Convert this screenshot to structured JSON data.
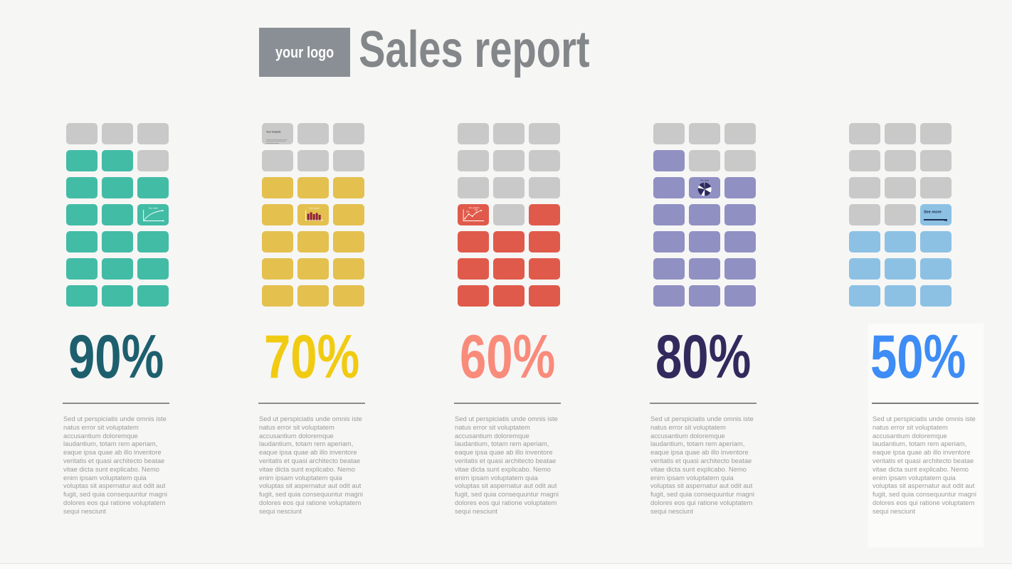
{
  "header": {
    "logo_text": "your logo",
    "title": "Sales report"
  },
  "colors": {
    "background": "#f6f6f5",
    "tile_gray": "#c9c9c9",
    "logo_bg": "#898f94",
    "title_gray": "#84878a",
    "rule": "#8d8d8d",
    "body_text": "#9b9b9b"
  },
  "shared": {
    "description": "Sed ut perspiciatis unde omnis iste natus error sit voluptatem accusantium doloremque laudantium, totam rem aperiam, eaque ipsa quae ab illo inventore veritatis et quasi architecto beatae vitae dicta sunt explicabo. Nemo enim ipsam voluptatem quia voluptas sit aspernatur aut odit aut fugit, sed quia consequuntur magni dolores eos qui ratione voluptatem sequi nesciunt"
  },
  "chart_data": {
    "type": "bar",
    "variant": "waffle-grid infographic, 5 stat columns of 7x3 rounded tiles",
    "title": "Sales report",
    "categories": [
      "column-1-teal",
      "column-2-yellow",
      "column-3-red",
      "column-4-purple",
      "column-5-blue"
    ],
    "values": [
      90,
      70,
      60,
      80,
      50
    ],
    "unit": "%",
    "waffle": {
      "rows": 7,
      "cols": 3,
      "total_tiles": 21,
      "filled_tiles": [
        17,
        15,
        11,
        16,
        10
      ]
    }
  },
  "columns": [
    {
      "percent": "90%",
      "percent_color": "#1e5f6e",
      "tile_color": "#43bca6",
      "chart": {
        "kind": "line-curve",
        "label": "Your sales"
      },
      "grid": [
        "gray",
        "gray",
        "gray",
        "fill",
        "fill",
        "gray",
        "fill",
        "fill",
        "fill",
        "fill",
        "fill",
        "chart",
        "fill",
        "fill",
        "fill",
        "fill",
        "fill",
        "fill",
        "fill",
        "fill",
        "fill"
      ]
    },
    {
      "percent": "70%",
      "percent_color": "#f1cb12",
      "tile_color": "#e4c04e",
      "chart": {
        "kind": "bar",
        "label": "Your report",
        "bar_color": "#8e2040"
      },
      "note": {
        "label": "Your template"
      },
      "grid": [
        "note",
        "gray",
        "gray",
        "gray",
        "gray",
        "gray",
        "fill",
        "fill",
        "fill",
        "fill",
        "chart",
        "fill",
        "fill",
        "fill",
        "fill",
        "fill",
        "fill",
        "fill",
        "fill",
        "fill",
        "fill"
      ]
    },
    {
      "percent": "60%",
      "percent_color": "#f98b7b",
      "tile_color": "#e05a4b",
      "chart": {
        "kind": "line-dots",
        "label": "line graphs",
        "point_labels": [
          "20%",
          "40%"
        ]
      },
      "grid": [
        "gray",
        "gray",
        "gray",
        "gray",
        "gray",
        "gray",
        "gray",
        "gray",
        "gray",
        "chart",
        "gray",
        "fill",
        "fill",
        "fill",
        "fill",
        "fill",
        "fill",
        "fill",
        "fill",
        "fill",
        "fill"
      ]
    },
    {
      "percent": "80%",
      "percent_color": "#322a5d",
      "tile_color": "#9090c3",
      "chart": {
        "kind": "pie",
        "label": "Pie chart",
        "slice_color": "#2e2a5e"
      },
      "grid": [
        "gray",
        "gray",
        "gray",
        "fill",
        "gray",
        "gray",
        "fill",
        "chart",
        "fill",
        "fill",
        "fill",
        "fill",
        "fill",
        "fill",
        "fill",
        "fill",
        "fill",
        "fill",
        "fill",
        "fill",
        "fill"
      ]
    },
    {
      "percent": "50%",
      "percent_color": "#3e8cf5",
      "tile_color": "#8cc1e4",
      "chart": {
        "kind": "see-more",
        "label": "See more"
      },
      "grid": [
        "gray",
        "gray",
        "gray",
        "gray",
        "gray",
        "gray",
        "gray",
        "gray",
        "gray",
        "gray",
        "gray",
        "chart",
        "fill",
        "fill",
        "fill",
        "fill",
        "fill",
        "fill",
        "fill",
        "fill",
        "fill"
      ]
    }
  ]
}
